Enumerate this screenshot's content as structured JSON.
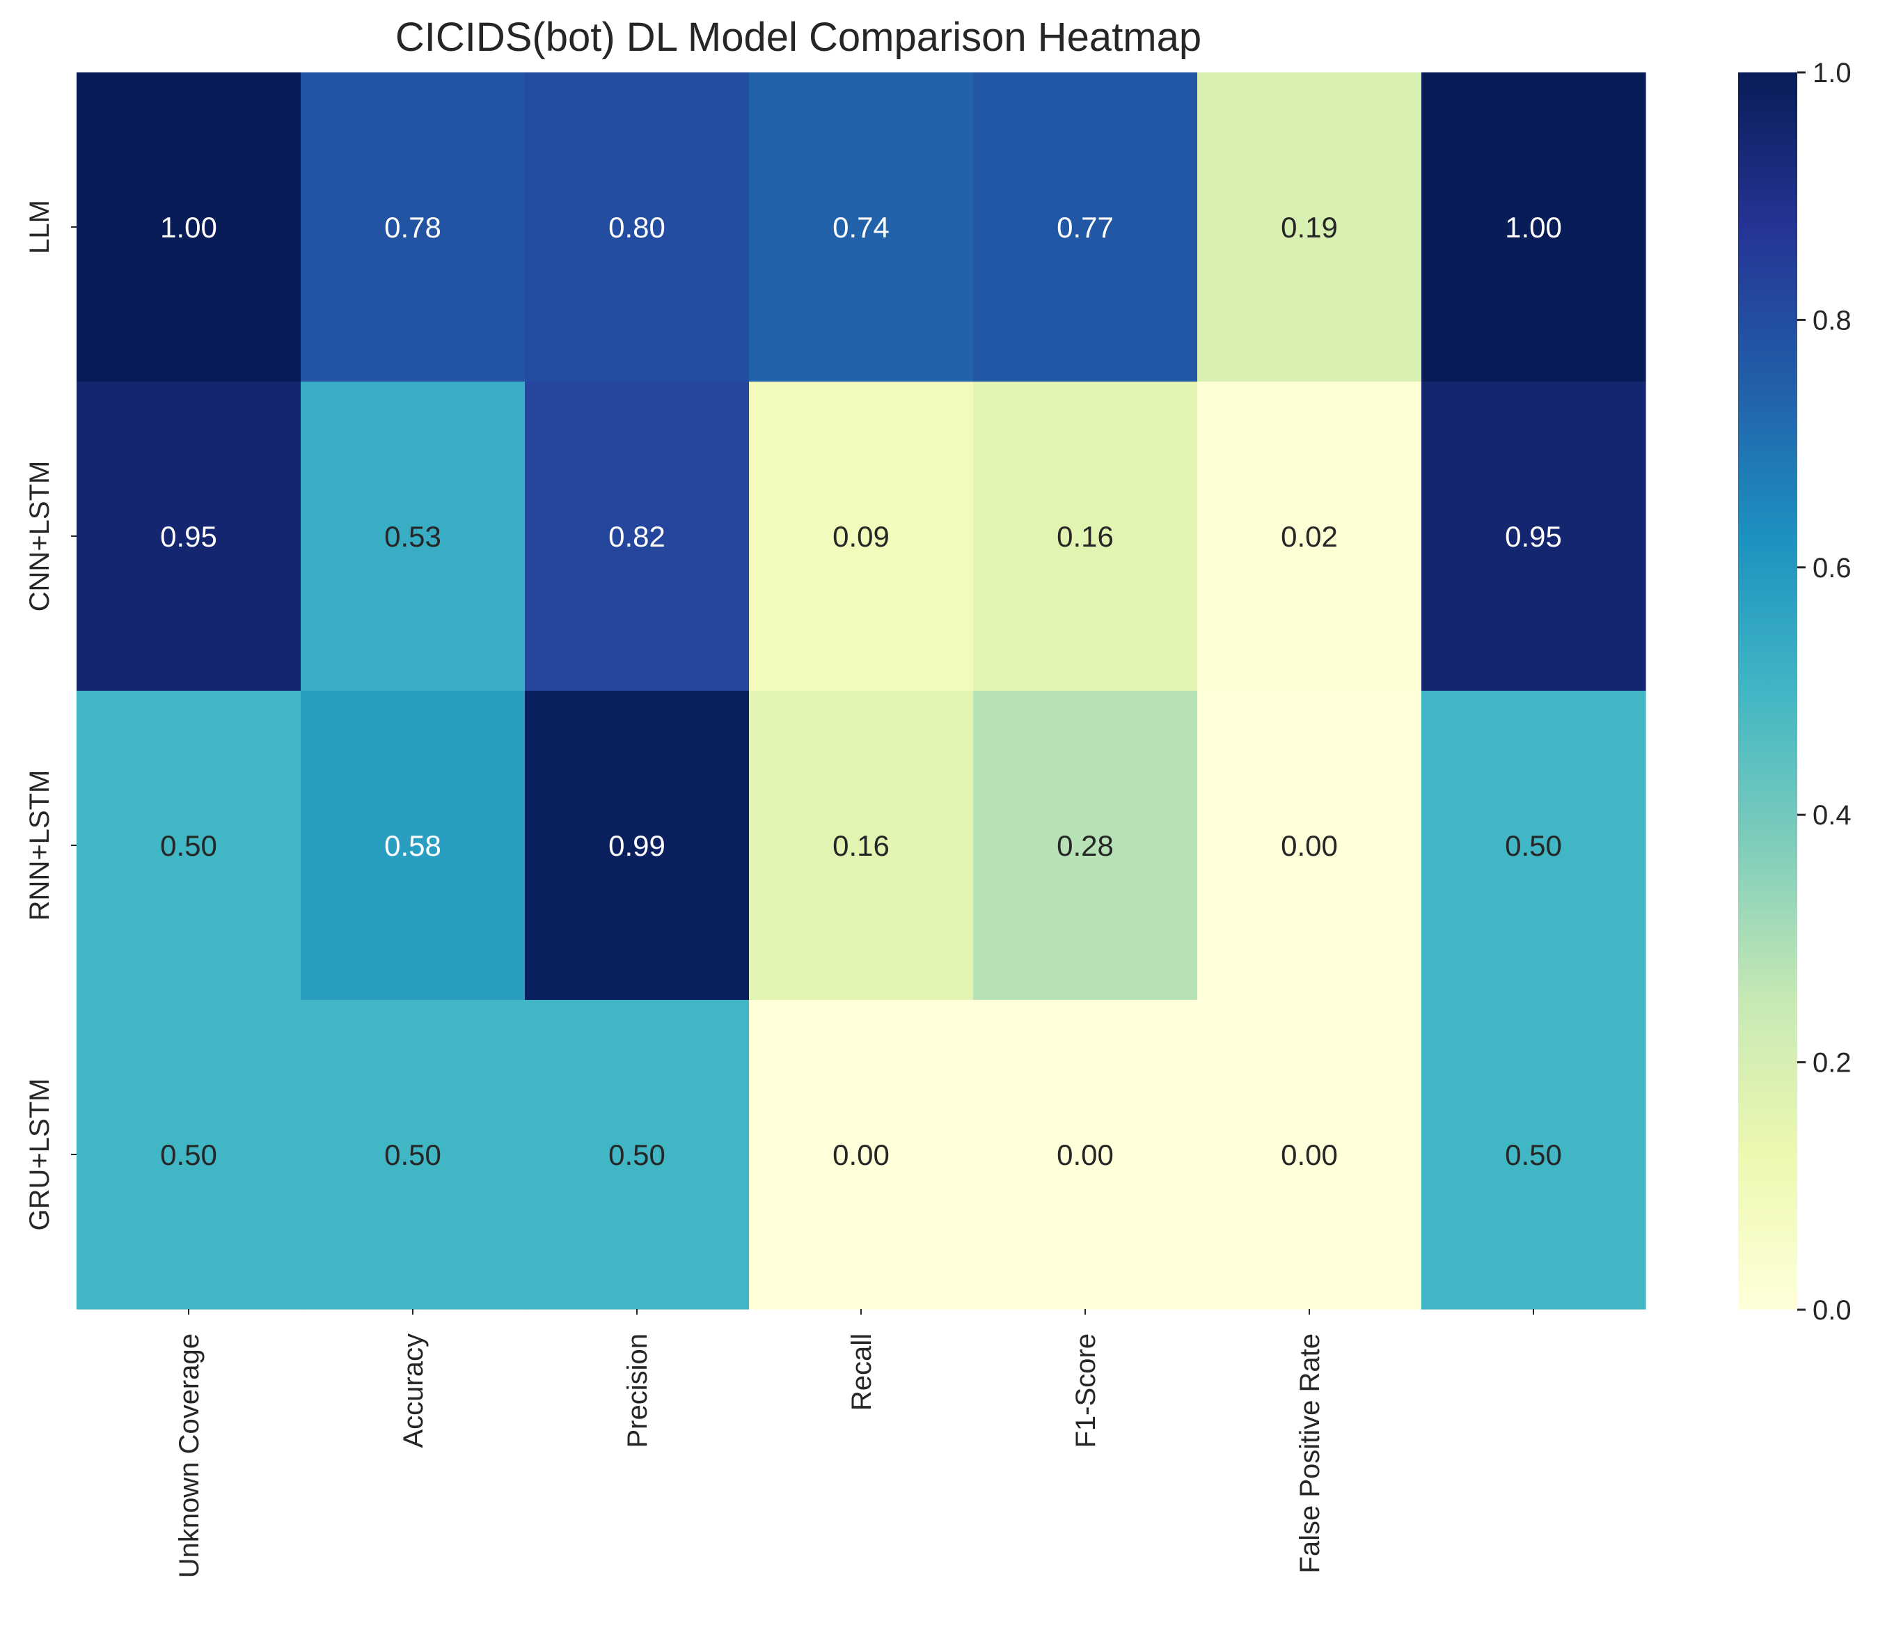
{
  "chart_data": {
    "type": "heatmap",
    "title": "CICIDS(bot) DL Model Comparison Heatmap",
    "columns": [
      "Unknown Coverage",
      "Accuracy",
      "Precision",
      "Recall",
      "F1-Score",
      "False Positive Rate",
      ""
    ],
    "rows": [
      "LLM",
      "CNN+LSTM",
      "RNN+LSTM",
      "GRU+LSTM"
    ],
    "values": [
      [
        1.0,
        0.78,
        0.8,
        0.74,
        0.77,
        0.19,
        1.0
      ],
      [
        0.95,
        0.53,
        0.82,
        0.09,
        0.16,
        0.02,
        0.95
      ],
      [
        0.5,
        0.58,
        0.99,
        0.16,
        0.28,
        0.0,
        0.5
      ],
      [
        0.5,
        0.5,
        0.5,
        0.0,
        0.0,
        0.0,
        0.5
      ]
    ],
    "value_format": "0.00",
    "colormap": "YlGnBu",
    "colorbar": {
      "range": [
        0.0,
        1.0
      ],
      "ticks": [
        0.0,
        0.2,
        0.4,
        0.6,
        0.8,
        1.0
      ],
      "tick_labels": [
        "0.0",
        "0.2",
        "0.4",
        "0.6",
        "0.8",
        "1.0"
      ]
    },
    "colors": {
      "text_dark": "#262626",
      "text_light": "#ffffff"
    }
  }
}
